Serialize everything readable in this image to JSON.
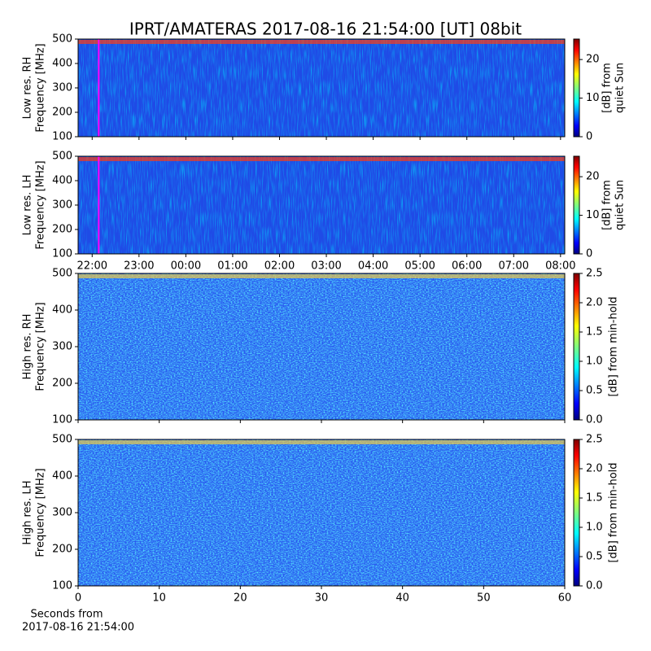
{
  "chart_data": [
    {
      "type": "heatmap",
      "title": "IPRT/AMATERAS 2017-08-16 21:54:00 [UT]   08bit",
      "ylabel": [
        "Low res. RH",
        "Frequency [MHz]"
      ],
      "xlim": [
        21.7,
        32.09
      ],
      "xticks": [
        22,
        23,
        24,
        25,
        26,
        27,
        28,
        29,
        30,
        31,
        32
      ],
      "show_xticklabels": false,
      "ylim": [
        100,
        500
      ],
      "yticks": [
        100,
        200,
        300,
        400,
        500
      ],
      "marker_x": 22.14,
      "marker_color": "#ff00ff",
      "colormap": "jet",
      "clim": [
        0,
        25.3
      ],
      "cticks": [
        0,
        10,
        20
      ],
      "clabel": [
        "[dB] from",
        "quiet Sun"
      ]
    },
    {
      "type": "heatmap",
      "ylabel": [
        "Low res. LH",
        "Frequency [MHz]"
      ],
      "xlim": [
        21.7,
        32.09
      ],
      "xticks": [
        {
          "value": 22,
          "label": "22:00"
        },
        {
          "value": 23,
          "label": "23:00"
        },
        {
          "value": 24,
          "label": "00:00"
        },
        {
          "value": 25,
          "label": "01:00"
        },
        {
          "value": 26,
          "label": "02:00"
        },
        {
          "value": 27,
          "label": "03:00"
        },
        {
          "value": 28,
          "label": "04:00"
        },
        {
          "value": 29,
          "label": "05:00"
        },
        {
          "value": 30,
          "label": "06:00"
        },
        {
          "value": 31,
          "label": "07:00"
        },
        {
          "value": 32,
          "label": "08:00"
        }
      ],
      "show_xticklabels": true,
      "ylim": [
        100,
        500
      ],
      "yticks": [
        100,
        200,
        300,
        400,
        500
      ],
      "marker_x": 22.14,
      "marker_color": "#ff00ff",
      "colormap": "jet",
      "clim": [
        0,
        25.3
      ],
      "cticks": [
        0,
        10,
        20
      ],
      "clabel": [
        "[dB] from",
        "quiet Sun"
      ]
    },
    {
      "type": "heatmap",
      "ylabel": [
        "High res. RH",
        "Frequency [MHz]"
      ],
      "xlim": [
        0,
        60
      ],
      "xticks": [
        0,
        10,
        20,
        30,
        40,
        50,
        60
      ],
      "show_xticklabels": false,
      "ylim": [
        100,
        500
      ],
      "yticks": [
        100,
        200,
        300,
        400,
        500
      ],
      "colormap": "jet",
      "clim": [
        0,
        2.5
      ],
      "cticks": [
        {
          "value": 0,
          "label": "0.0"
        },
        {
          "value": 0.5,
          "label": "0.5"
        },
        {
          "value": 1,
          "label": "1.0"
        },
        {
          "value": 1.5,
          "label": "1.5"
        },
        {
          "value": 2,
          "label": "2.0"
        },
        {
          "value": 2.5,
          "label": "2.5"
        }
      ],
      "clabel": [
        "[dB] from min-hold"
      ]
    },
    {
      "type": "heatmap",
      "ylabel": [
        "High res. LH",
        "Frequency [MHz]"
      ],
      "xlim": [
        0,
        60
      ],
      "xticks": [
        0,
        10,
        20,
        30,
        40,
        50,
        60
      ],
      "show_xticklabels": true,
      "xlabel": [
        "Seconds from",
        "2017-08-16 21:54:00"
      ],
      "ylim": [
        100,
        500
      ],
      "yticks": [
        100,
        200,
        300,
        400,
        500
      ],
      "colormap": "jet",
      "clim": [
        0,
        2.5
      ],
      "cticks": [
        {
          "value": 0,
          "label": "0.0"
        },
        {
          "value": 0.5,
          "label": "0.5"
        },
        {
          "value": 1,
          "label": "1.0"
        },
        {
          "value": 1.5,
          "label": "1.5"
        },
        {
          "value": 2,
          "label": "2.0"
        },
        {
          "value": 2.5,
          "label": "2.5"
        }
      ],
      "clabel": [
        "[dB] from min-hold"
      ]
    }
  ]
}
